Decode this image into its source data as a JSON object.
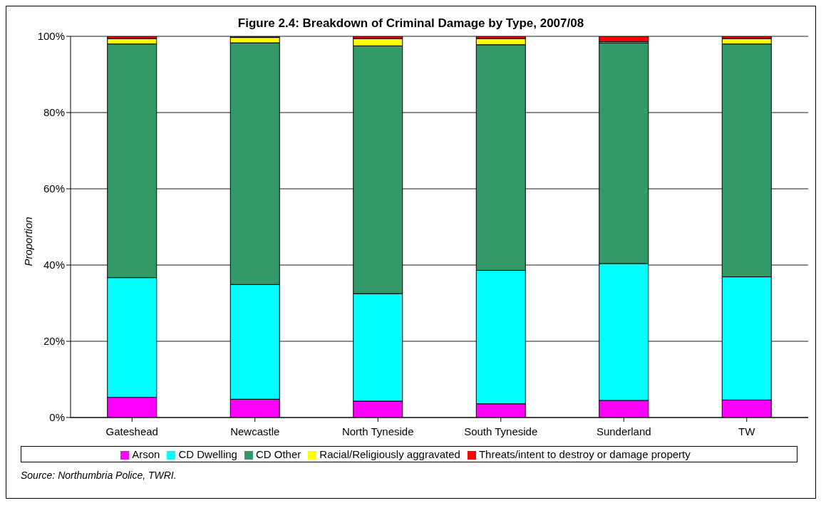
{
  "chart_data": {
    "type": "bar",
    "stacked": true,
    "title": "Figure 2.4: Breakdown of Criminal Damage by Type, 2007/08",
    "ylabel": "Proportion",
    "categories": [
      "Gateshead",
      "Newcastle",
      "North Tyneside",
      "South Tyneside",
      "Sunderland",
      "TW"
    ],
    "series": [
      {
        "name": "Arson",
        "color": "#ff00ff",
        "values": [
          5.3,
          4.8,
          4.3,
          3.6,
          4.5,
          4.6
        ]
      },
      {
        "name": "CD Dwelling",
        "color": "#00ffff",
        "values": [
          31.4,
          30.1,
          28.2,
          35.0,
          35.9,
          32.3
        ]
      },
      {
        "name": "CD Other",
        "color": "#339966",
        "values": [
          61.3,
          63.4,
          65.0,
          59.2,
          57.9,
          61.1
        ]
      },
      {
        "name": "Racial/Religiously aggravated",
        "color": "#ffff00",
        "values": [
          1.4,
          1.4,
          1.9,
          1.6,
          0.3,
          1.4
        ]
      },
      {
        "name": "Threats/intent to destroy or damage property",
        "color": "#ff0000",
        "values": [
          0.6,
          0.3,
          0.6,
          0.6,
          1.4,
          0.6
        ]
      }
    ],
    "ylim": [
      0,
      100
    ],
    "yticks": [
      {
        "value": 0,
        "label": "0%"
      },
      {
        "value": 20,
        "label": "20%"
      },
      {
        "value": 40,
        "label": "40%"
      },
      {
        "value": 60,
        "label": "60%"
      },
      {
        "value": 80,
        "label": "80%"
      },
      {
        "value": 100,
        "label": "100%"
      }
    ],
    "grid": "y",
    "legend": "bottom",
    "annotations": [
      "Source: Northumbria Police, TWRI."
    ]
  }
}
